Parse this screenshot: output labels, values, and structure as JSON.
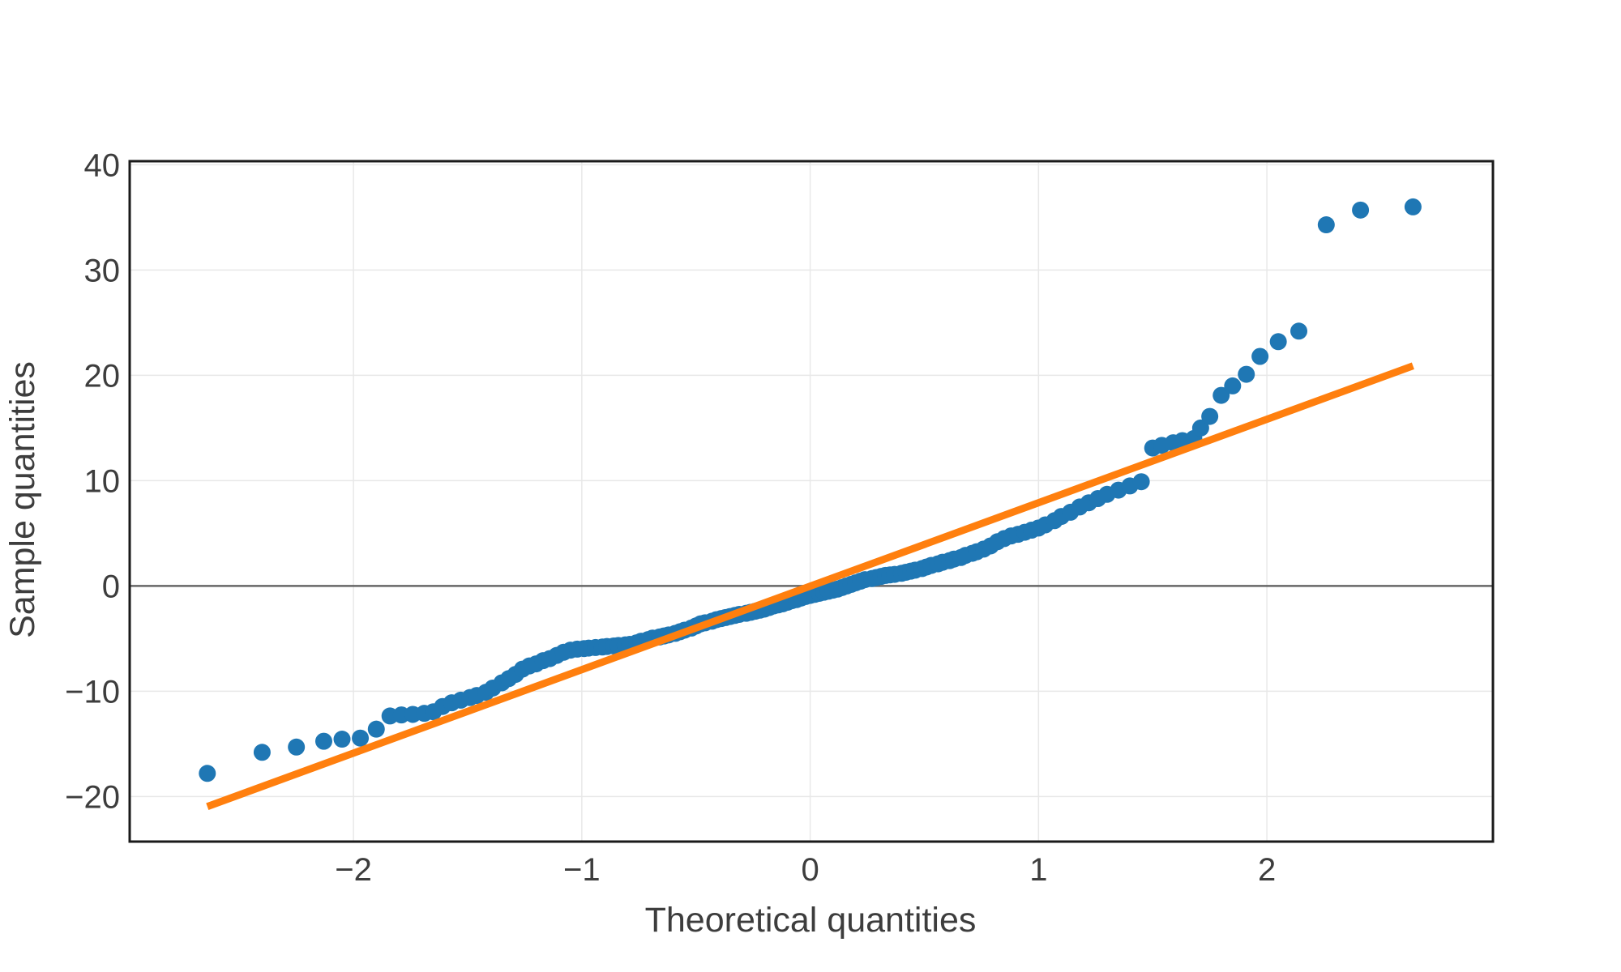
{
  "figure": {
    "xlabel": "Theoretical quantities",
    "ylabel": "Sample quantities"
  },
  "chart_data": {
    "type": "scatter",
    "title": "",
    "xlabel": "Theoretical quantities",
    "ylabel": "Sample quantities",
    "xlim": [
      -2.98,
      2.99
    ],
    "ylim": [
      -24.28,
      40.34
    ],
    "xticks": [
      -2,
      -1,
      0,
      1,
      2
    ],
    "xtick_labels": [
      "−2",
      "−1",
      "0",
      "1",
      "2"
    ],
    "yticks": [
      -20,
      -10,
      0,
      10,
      20,
      30,
      40
    ],
    "ytick_labels": [
      "−20",
      "−10",
      "0",
      "10",
      "20",
      "30",
      "40"
    ],
    "grid": true,
    "legend_position": "none",
    "zero_line_y": 0,
    "colors": {
      "marker": "#1f77b4",
      "line": "#ff7f0e",
      "grid": "#e8e8e8",
      "spine": "#1a1a1a",
      "zero_line": "#666666",
      "text": "#3d3d3d",
      "background": "#ffffff"
    },
    "series": [
      {
        "name": "sample-quantiles",
        "type": "scatter",
        "color": "#1f77b4",
        "points": [
          [
            -2.64,
            -17.8
          ],
          [
            -2.4,
            -15.8
          ],
          [
            -2.25,
            -15.3
          ],
          [
            -2.13,
            -14.75
          ],
          [
            -2.05,
            -14.55
          ],
          [
            -1.97,
            -14.45
          ],
          [
            -1.9,
            -13.6
          ],
          [
            -1.84,
            -12.35
          ],
          [
            -1.79,
            -12.25
          ],
          [
            -1.74,
            -12.2
          ],
          [
            -1.69,
            -12.1
          ],
          [
            -1.65,
            -11.95
          ],
          [
            -1.61,
            -11.45
          ],
          [
            -1.57,
            -11.1
          ],
          [
            -1.53,
            -10.85
          ],
          [
            -1.49,
            -10.6
          ],
          [
            -1.46,
            -10.4
          ],
          [
            -1.42,
            -10.1
          ],
          [
            -1.39,
            -9.7
          ],
          [
            -1.35,
            -9.2
          ],
          [
            -1.32,
            -8.8
          ],
          [
            -1.29,
            -8.4
          ],
          [
            -1.26,
            -7.9
          ],
          [
            -1.23,
            -7.6
          ],
          [
            -1.2,
            -7.4
          ],
          [
            -1.17,
            -7.1
          ],
          [
            -1.14,
            -6.9
          ],
          [
            -1.11,
            -6.6
          ],
          [
            -1.08,
            -6.3
          ],
          [
            -1.05,
            -6.1
          ],
          [
            -1.02,
            -6.0
          ],
          [
            -0.99,
            -5.95
          ],
          [
            -0.97,
            -5.9
          ],
          [
            -0.94,
            -5.85
          ],
          [
            -0.91,
            -5.8
          ],
          [
            -0.89,
            -5.75
          ],
          [
            -0.86,
            -5.7
          ],
          [
            -0.84,
            -5.65
          ],
          [
            -0.81,
            -5.6
          ],
          [
            -0.79,
            -5.55
          ],
          [
            -0.76,
            -5.4
          ],
          [
            -0.74,
            -5.25
          ],
          [
            -0.71,
            -5.1
          ],
          [
            -0.69,
            -4.95
          ],
          [
            -0.66,
            -4.85
          ],
          [
            -0.64,
            -4.75
          ],
          [
            -0.62,
            -4.65
          ],
          [
            -0.59,
            -4.5
          ],
          [
            -0.57,
            -4.35
          ],
          [
            -0.55,
            -4.2
          ],
          [
            -0.52,
            -4.0
          ],
          [
            -0.5,
            -3.8
          ],
          [
            -0.48,
            -3.6
          ],
          [
            -0.46,
            -3.5
          ],
          [
            -0.43,
            -3.35
          ],
          [
            -0.41,
            -3.2
          ],
          [
            -0.39,
            -3.1
          ],
          [
            -0.37,
            -3.0
          ],
          [
            -0.35,
            -2.9
          ],
          [
            -0.33,
            -2.8
          ],
          [
            -0.31,
            -2.7
          ],
          [
            -0.28,
            -2.6
          ],
          [
            -0.26,
            -2.5
          ],
          [
            -0.24,
            -2.4
          ],
          [
            -0.22,
            -2.3
          ],
          [
            -0.2,
            -2.2
          ],
          [
            -0.18,
            -2.05
          ],
          [
            -0.16,
            -1.9
          ],
          [
            -0.14,
            -1.8
          ],
          [
            -0.12,
            -1.7
          ],
          [
            -0.1,
            -1.55
          ],
          [
            -0.08,
            -1.4
          ],
          [
            -0.06,
            -1.3
          ],
          [
            -0.04,
            -1.15
          ],
          [
            -0.02,
            -1.0
          ],
          [
            0.0,
            -0.9
          ],
          [
            0.02,
            -0.8
          ],
          [
            0.04,
            -0.7
          ],
          [
            0.06,
            -0.6
          ],
          [
            0.08,
            -0.5
          ],
          [
            0.1,
            -0.4
          ],
          [
            0.12,
            -0.3
          ],
          [
            0.14,
            -0.15
          ],
          [
            0.16,
            0.0
          ],
          [
            0.18,
            0.15
          ],
          [
            0.2,
            0.3
          ],
          [
            0.22,
            0.45
          ],
          [
            0.24,
            0.6
          ],
          [
            0.27,
            0.7
          ],
          [
            0.29,
            0.8
          ],
          [
            0.31,
            0.9
          ],
          [
            0.33,
            1.0
          ],
          [
            0.35,
            1.05
          ],
          [
            0.37,
            1.1
          ],
          [
            0.4,
            1.2
          ],
          [
            0.42,
            1.3
          ],
          [
            0.44,
            1.4
          ],
          [
            0.46,
            1.5
          ],
          [
            0.49,
            1.65
          ],
          [
            0.51,
            1.8
          ],
          [
            0.53,
            1.95
          ],
          [
            0.56,
            2.1
          ],
          [
            0.58,
            2.25
          ],
          [
            0.61,
            2.4
          ],
          [
            0.63,
            2.55
          ],
          [
            0.66,
            2.7
          ],
          [
            0.68,
            2.9
          ],
          [
            0.71,
            3.1
          ],
          [
            0.73,
            3.25
          ],
          [
            0.76,
            3.5
          ],
          [
            0.79,
            3.8
          ],
          [
            0.82,
            4.2
          ],
          [
            0.85,
            4.5
          ],
          [
            0.88,
            4.75
          ],
          [
            0.91,
            4.9
          ],
          [
            0.94,
            5.1
          ],
          [
            0.97,
            5.3
          ],
          [
            1.0,
            5.5
          ],
          [
            1.03,
            5.8
          ],
          [
            1.07,
            6.2
          ],
          [
            1.1,
            6.6
          ],
          [
            1.14,
            7.0
          ],
          [
            1.18,
            7.5
          ],
          [
            1.22,
            7.9
          ],
          [
            1.26,
            8.3
          ],
          [
            1.3,
            8.7
          ],
          [
            1.35,
            9.1
          ],
          [
            1.4,
            9.5
          ],
          [
            1.45,
            9.9
          ],
          [
            1.5,
            13.1
          ],
          [
            1.54,
            13.35
          ],
          [
            1.59,
            13.6
          ],
          [
            1.63,
            13.8
          ],
          [
            1.68,
            14.0
          ],
          [
            1.71,
            15.0
          ],
          [
            1.75,
            16.1
          ],
          [
            1.8,
            18.1
          ],
          [
            1.85,
            19.0
          ],
          [
            1.91,
            20.1
          ],
          [
            1.97,
            21.8
          ],
          [
            2.05,
            23.2
          ],
          [
            2.14,
            24.2
          ],
          [
            2.26,
            34.3
          ],
          [
            2.41,
            35.7
          ],
          [
            2.64,
            36.0
          ]
        ]
      },
      {
        "name": "reference-line",
        "type": "line",
        "color": "#ff7f0e",
        "points": [
          [
            -2.64,
            -20.95
          ],
          [
            2.64,
            20.9
          ]
        ]
      }
    ]
  }
}
